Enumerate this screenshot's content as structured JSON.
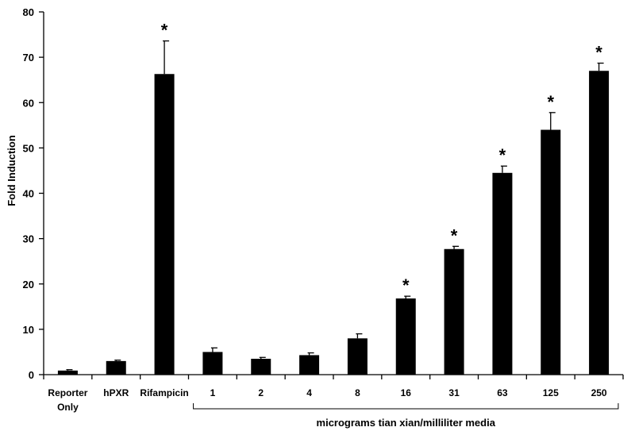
{
  "chart_data": {
    "type": "bar",
    "title": "",
    "ylabel": "Fold Induction",
    "xlabel": "",
    "ylim": [
      0,
      80
    ],
    "yticks": [
      0,
      10,
      20,
      30,
      40,
      50,
      60,
      70,
      80
    ],
    "grid": false,
    "categories": [
      [
        "Reporter",
        "Only"
      ],
      [
        "hPXR"
      ],
      [
        "Rifampicin"
      ],
      [
        "1"
      ],
      [
        "2"
      ],
      [
        "4"
      ],
      [
        "8"
      ],
      [
        "16"
      ],
      [
        "31"
      ],
      [
        "63"
      ],
      [
        "125"
      ],
      [
        "250"
      ]
    ],
    "values": [
      0.9,
      3.0,
      66.3,
      5.0,
      3.5,
      4.3,
      8.0,
      16.8,
      27.7,
      44.5,
      54.0,
      67.0
    ],
    "errors": [
      0.2,
      0.2,
      7.3,
      0.9,
      0.3,
      0.5,
      1.0,
      0.5,
      0.6,
      1.5,
      3.8,
      1.7
    ],
    "significant": [
      false,
      false,
      true,
      false,
      false,
      false,
      false,
      true,
      true,
      true,
      true,
      true
    ],
    "significance_marker": "*",
    "bar_color": "#000000",
    "group_bracket": {
      "label": "micrograms tian xian/milliliter media",
      "from_index": 3,
      "to_index": 11
    }
  }
}
